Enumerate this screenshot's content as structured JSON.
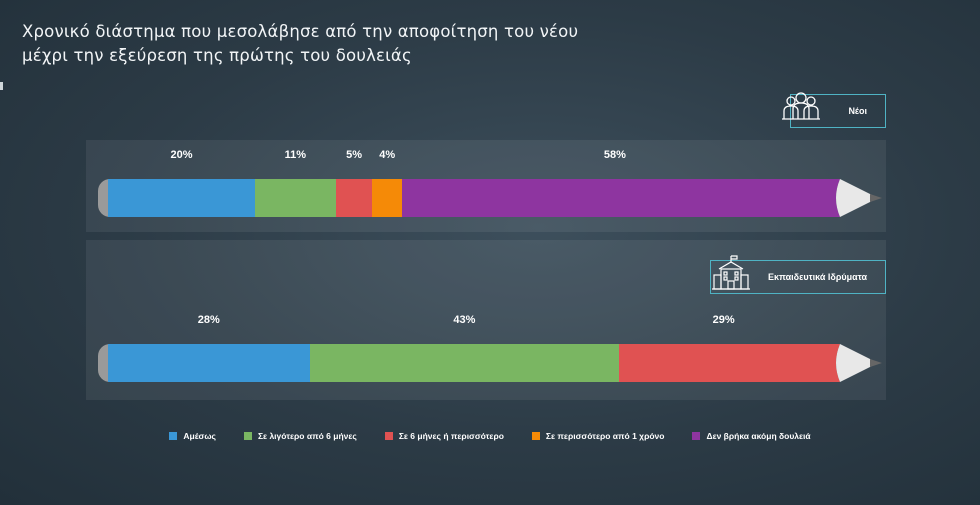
{
  "title": "Χρονικό διάστημα που μεσολάβησε από την αποφοίτηση του νέου μέχρι την εξεύρεση της πρώτης του δουλειάς",
  "panels": {
    "youth_label": "Νέοι",
    "institutions_label": "Εκπαιδευτικά Ιδρύματα",
    "youth_icon": "people-icon",
    "institutions_icon": "school-building-icon"
  },
  "colors": {
    "immediately": "#3a97d6",
    "lt6": "#7ab662",
    "ge6": "#e05252",
    "gt1y": "#f58a07",
    "notfound": "#8e35a0"
  },
  "chart_data": [
    {
      "type": "bar",
      "orientation": "horizontal-stacked",
      "name": "Νέοι",
      "categories": [
        "Αμέσως",
        "Σε λιγότερο από 6 μήνες",
        "Σε 6 μήνες ή περισσότερο",
        "Σε περισσότερο από 1 χρόνο",
        "Δεν βρήκα ακόμη δουλειά"
      ],
      "values": [
        20,
        11,
        5,
        4,
        58
      ],
      "labels": [
        "20%",
        "11%",
        "5%",
        "4%",
        "58%"
      ],
      "unit": "%"
    },
    {
      "type": "bar",
      "orientation": "horizontal-stacked",
      "name": "Εκπαιδευτικά Ιδρύματα",
      "categories": [
        "Αμέσως",
        "Σε λιγότερο από 6 μήνες",
        "Σε 6 μήνες ή περισσότερο"
      ],
      "values": [
        28,
        43,
        29
      ],
      "labels": [
        "28%",
        "43%",
        "29%"
      ],
      "unit": "%"
    }
  ],
  "legend": [
    {
      "label": "Αμέσως",
      "color_key": "immediately"
    },
    {
      "label": "Σε λιγότερο από 6 μήνες",
      "color_key": "lt6"
    },
    {
      "label": "Σε 6 μήνες ή περισσότερο",
      "color_key": "ge6"
    },
    {
      "label": "Σε περισσότερο από 1 χρόνο",
      "color_key": "gt1y"
    },
    {
      "label": "Δεν βρήκα ακόμη δουλειά",
      "color_key": "notfound"
    }
  ]
}
